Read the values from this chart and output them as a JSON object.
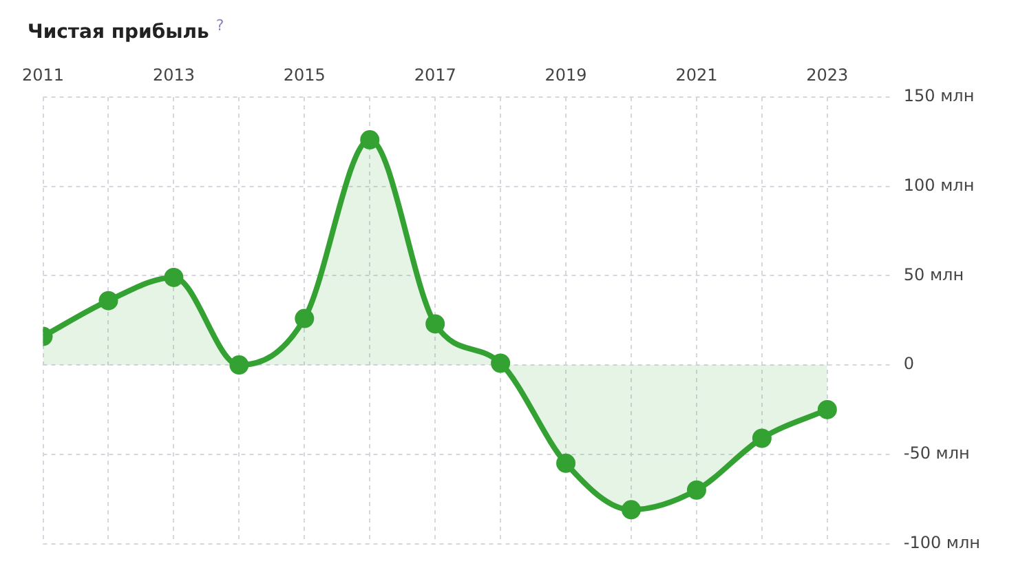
{
  "chart_data": {
    "type": "area",
    "title": "Чистая прибыль",
    "x": [
      2011,
      2012,
      2013,
      2014,
      2015,
      2016,
      2017,
      2018,
      2019,
      2020,
      2021,
      2022,
      2023
    ],
    "series": [
      {
        "color": "#34a233",
        "values": [
          16,
          36,
          49,
          0,
          26,
          126,
          23,
          1,
          -55,
          -81,
          -70,
          -41,
          -25
        ]
      }
    ],
    "xlim": [
      2011,
      2024
    ],
    "xticks": [
      2011,
      {
        "value": 2012,
        "label": null
      },
      2013,
      {
        "value": 2014,
        "label": null
      },
      2015,
      {
        "value": 2016,
        "label": null
      },
      2017,
      {
        "value": 2018,
        "label": null
      },
      2019,
      {
        "value": 2020,
        "label": null
      },
      2021,
      {
        "value": 2022,
        "label": null
      },
      2023
    ],
    "ylim": [
      -100,
      150
    ],
    "yticks": [
      {
        "value": -100,
        "label": "-100 млн"
      },
      {
        "value": -50,
        "label": "-50 млн"
      },
      0,
      {
        "value": 50,
        "label": "50 млн"
      },
      {
        "value": 100,
        "label": "100 млн"
      },
      {
        "value": 150,
        "label": "150 млн"
      }
    ],
    "annotations": [
      "?"
    ],
    "grid": true,
    "legend": false,
    "marker": "circle",
    "line_style": "solid"
  }
}
